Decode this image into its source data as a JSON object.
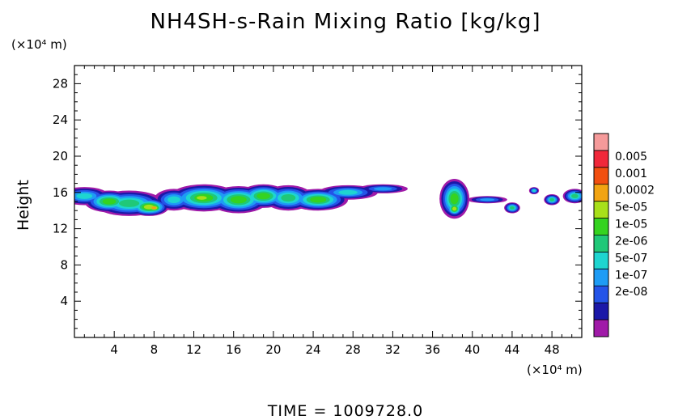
{
  "chart_data": {
    "type": "heatmap",
    "title": "NH4SH-s-Rain Mixing Ratio [kg/kg]",
    "ylabel": "Height",
    "y_unit": "(×10⁴ m)",
    "x_unit": "(×10⁴ m)",
    "footer": "TIME  =  1009728.0",
    "xlim": [
      0,
      51
    ],
    "ylim": [
      0,
      30
    ],
    "xticks_labeled": [
      4,
      8,
      12,
      16,
      20,
      24,
      28,
      32,
      36,
      40,
      44,
      48
    ],
    "yticks_labeled": [
      4,
      8,
      12,
      16,
      20,
      24,
      28
    ],
    "colorbar": {
      "labels": [
        "0.005",
        "0.001",
        "0.0002",
        "5e-05",
        "1e-05",
        "2e-06",
        "5e-07",
        "1e-07",
        "2e-08"
      ],
      "colors": [
        "#a01aa8",
        "#1b18a8",
        "#2454e8",
        "#1e9cf5",
        "#1ed5d0",
        "#20c878",
        "#35d320",
        "#a8e01a",
        "#f2a412",
        "#f24f10",
        "#f0283a",
        "#f59a9a"
      ]
    },
    "field": {
      "description": "cloud layer",
      "blobs": [
        {
          "x": 1.0,
          "y": 15.6,
          "rx": 2.5,
          "ry": 1.0,
          "level": 4
        },
        {
          "x": 3.5,
          "y": 15.0,
          "rx": 2.5,
          "ry": 1.2,
          "level": 6
        },
        {
          "x": 5.5,
          "y": 14.8,
          "rx": 3.5,
          "ry": 1.4,
          "level": 5
        },
        {
          "x": 7.5,
          "y": 14.4,
          "rx": 2.0,
          "ry": 1.0,
          "level": 7
        },
        {
          "x": 8.0,
          "y": 14.3,
          "rx": 1.0,
          "ry": 0.6,
          "level": 8
        },
        {
          "x": 10.0,
          "y": 15.2,
          "rx": 2.0,
          "ry": 1.2,
          "level": 4
        },
        {
          "x": 13.0,
          "y": 15.4,
          "rx": 3.5,
          "ry": 1.5,
          "level": 6
        },
        {
          "x": 12.8,
          "y": 15.4,
          "rx": 2.0,
          "ry": 0.8,
          "level": 7
        },
        {
          "x": 16.5,
          "y": 15.2,
          "rx": 3.0,
          "ry": 1.5,
          "level": 6
        },
        {
          "x": 19.0,
          "y": 15.6,
          "rx": 2.5,
          "ry": 1.3,
          "level": 6
        },
        {
          "x": 21.5,
          "y": 15.4,
          "rx": 2.5,
          "ry": 1.4,
          "level": 5
        },
        {
          "x": 24.5,
          "y": 15.2,
          "rx": 3.0,
          "ry": 1.2,
          "level": 6
        },
        {
          "x": 27.5,
          "y": 16.0,
          "rx": 3.0,
          "ry": 0.8,
          "level": 4
        },
        {
          "x": 31.0,
          "y": 16.4,
          "rx": 2.5,
          "ry": 0.5,
          "level": 3
        },
        {
          "x": 38.2,
          "y": 15.3,
          "rx": 1.5,
          "ry": 2.2,
          "level": 6
        },
        {
          "x": 38.2,
          "y": 14.2,
          "rx": 0.8,
          "ry": 0.8,
          "level": 7
        },
        {
          "x": 41.5,
          "y": 15.2,
          "rx": 2.0,
          "ry": 0.4,
          "level": 3
        },
        {
          "x": 44.0,
          "y": 14.3,
          "rx": 0.8,
          "ry": 0.6,
          "level": 5
        },
        {
          "x": 46.2,
          "y": 16.2,
          "rx": 0.5,
          "ry": 0.4,
          "level": 4
        },
        {
          "x": 48.0,
          "y": 15.2,
          "rx": 0.8,
          "ry": 0.6,
          "level": 5
        },
        {
          "x": 50.3,
          "y": 15.6,
          "rx": 1.2,
          "ry": 0.8,
          "level": 5
        }
      ]
    }
  }
}
